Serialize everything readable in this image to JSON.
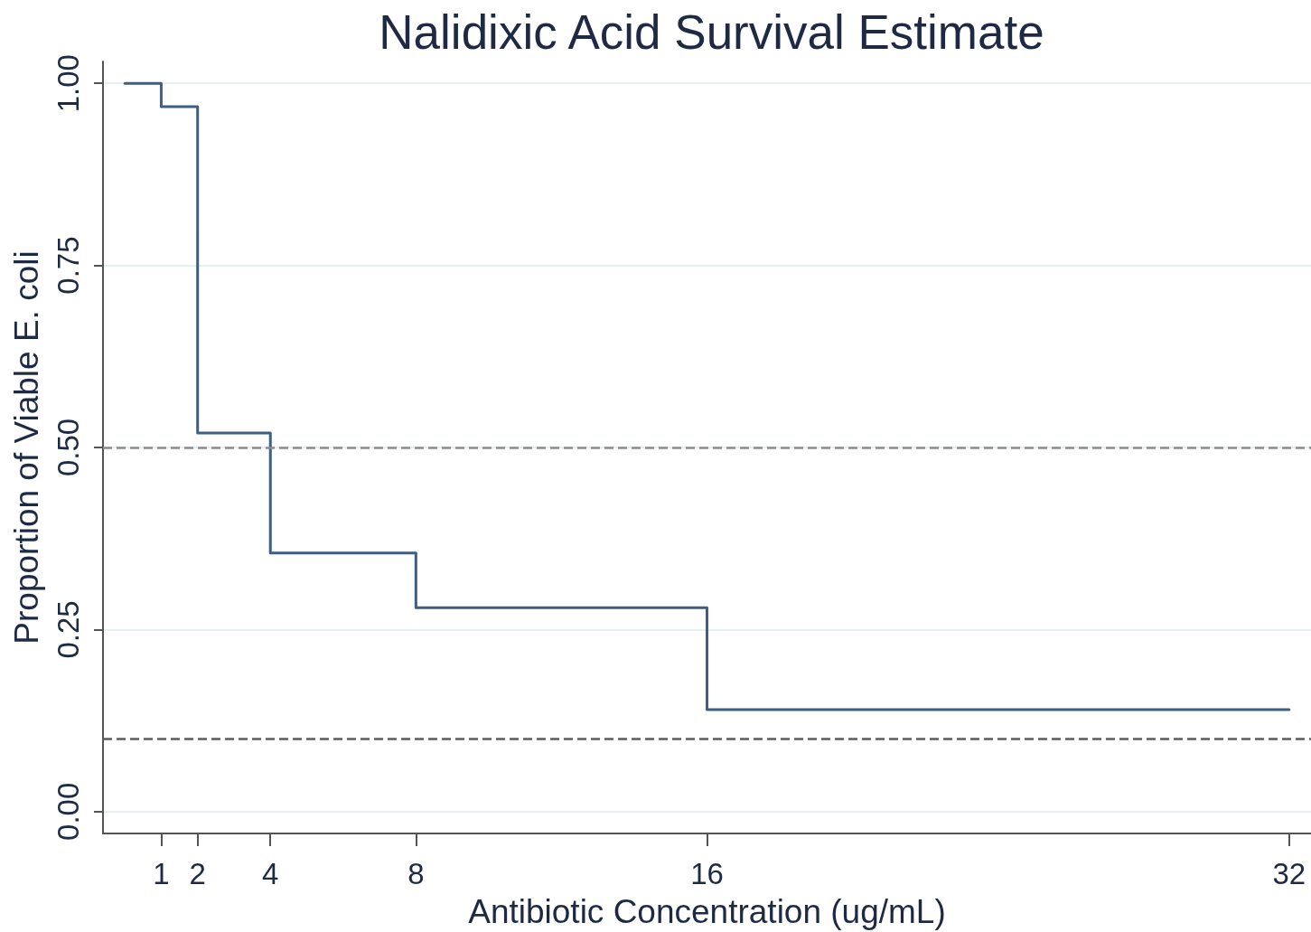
{
  "chart_data": {
    "type": "step",
    "title": "Nalidixic Acid Survival Estimate",
    "xlabel": "Antibiotic Concentration (ug/mL)",
    "ylabel": "Proportion of Viable E. coli",
    "x": [
      0,
      1,
      2,
      4,
      8,
      16,
      32
    ],
    "series": [
      {
        "color": "#3e5e84",
        "values": [
          1,
          0.968,
          0.52,
          0.355,
          0.28,
          0.14,
          0.14
        ]
      }
    ],
    "xlim": [
      -0.6,
      32.6
    ],
    "ylim": [
      -0.03,
      1.03
    ],
    "xticks": [
      1,
      2,
      4,
      8,
      16,
      32
    ],
    "yticks": [
      {
        "value": 0,
        "label": "0.00"
      },
      {
        "value": 0.25,
        "label": "0.25"
      },
      {
        "value": 0.5,
        "label": "0.50"
      },
      {
        "value": 0.75,
        "label": "0.75"
      },
      {
        "value": 1,
        "label": "1.00"
      }
    ],
    "ref_lines": [
      {
        "axis": "y",
        "value": 0.5,
        "color": "#8c8c8c",
        "line_style": "dashed"
      },
      {
        "axis": "y",
        "value": 0.1,
        "color": "#5c5c5c",
        "line_style": "dashed"
      }
    ],
    "grid": "y"
  }
}
